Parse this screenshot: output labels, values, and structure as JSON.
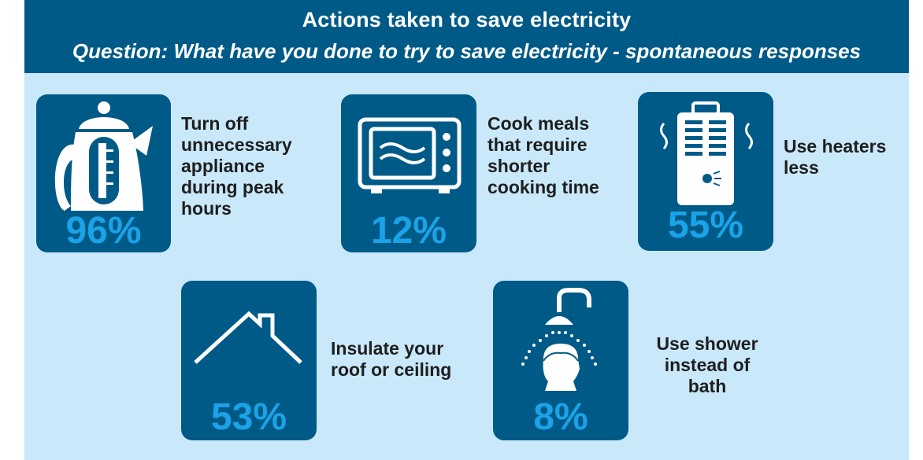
{
  "header": {
    "title": "Actions taken to save electricity",
    "question": "Question: What have you done to try to save electricity - spontaneous responses"
  },
  "colors": {
    "header_bg": "#005a87",
    "panel_bg": "#c9e8fa",
    "tile_bg": "#005a87",
    "percent_text": "#1aa3e8",
    "label_text": "#1e1e1e"
  },
  "items": [
    {
      "icon": "kettle-icon",
      "percent": "96%",
      "label": "Turn off\nunnecessary\nappliance\nduring peak\nhours"
    },
    {
      "icon": "microwave-icon",
      "percent": "12%",
      "label": "Cook meals\nthat require\nshorter\ncooking time"
    },
    {
      "icon": "heater-icon",
      "percent": "55%",
      "label": "Use heaters\nless"
    },
    {
      "icon": "roof-icon",
      "percent": "53%",
      "label": "Insulate your\nroof or ceiling"
    },
    {
      "icon": "shower-icon",
      "percent": "8%",
      "label": "Use shower\ninstead of\nbath"
    }
  ]
}
